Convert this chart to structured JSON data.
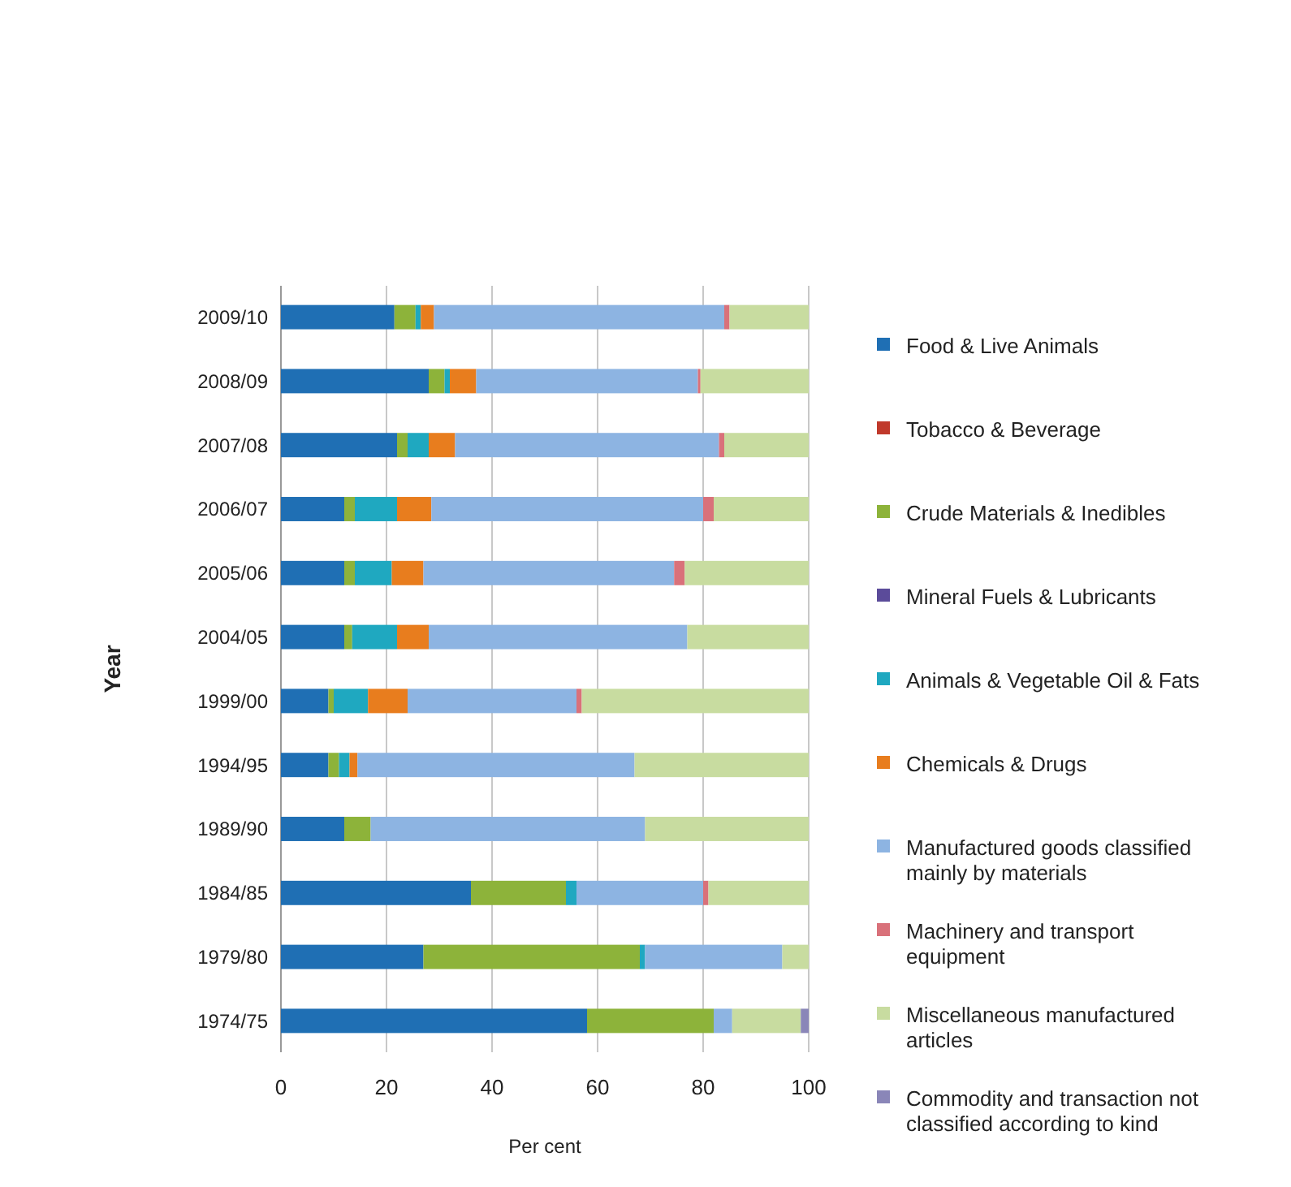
{
  "chart_data": {
    "type": "bar",
    "orientation": "horizontal",
    "stacked": true,
    "xlabel": "Per cent",
    "ylabel": "Year",
    "categories": [
      "2009/10",
      "2008/09",
      "2007/08",
      "2006/07",
      "2005/06",
      "2004/05",
      "1999/00",
      "1994/95",
      "1989/90",
      "1984/85",
      "1979/80",
      "1974/75"
    ],
    "xlim": [
      0,
      100
    ],
    "xticks": [
      0,
      20,
      40,
      60,
      80,
      100
    ],
    "grid": "x",
    "legend": "right",
    "series": [
      {
        "name": "Food & Live Animals",
        "color": "#1f6fb4",
        "values": [
          21.5,
          28,
          22,
          12,
          12,
          12,
          9,
          9,
          12,
          36,
          27,
          58
        ]
      },
      {
        "name": "Tobacco & Beverage",
        "color": "#c0392b",
        "values": [
          0,
          0,
          0,
          0,
          0,
          0,
          0,
          0,
          0,
          0,
          0,
          0
        ]
      },
      {
        "name": "Crude Materials & Inedibles",
        "color": "#8db33a",
        "values": [
          4,
          3,
          2,
          2,
          2,
          1.5,
          1,
          2,
          5,
          18,
          41,
          24
        ]
      },
      {
        "name": "Mineral Fuels & Lubricants",
        "color": "#5b4b9a",
        "values": [
          0,
          0,
          0,
          0,
          0,
          0,
          0,
          0,
          0,
          0,
          0,
          0
        ]
      },
      {
        "name": "Animals & Vegetable Oil & Fats",
        "color": "#1fa8c0",
        "values": [
          1,
          1,
          4,
          8,
          7,
          8.5,
          6.5,
          2,
          0,
          2,
          1,
          0
        ]
      },
      {
        "name": "Chemicals & Drugs",
        "color": "#e87d1e",
        "values": [
          2.5,
          5,
          5,
          6.5,
          6,
          6,
          7.5,
          1.5,
          0,
          0,
          0,
          0
        ]
      },
      {
        "name": "Manufactured goods classified mainly by materials",
        "color": "#8db4e2",
        "values": [
          55,
          42,
          50,
          51.5,
          47.5,
          49,
          32,
          52.5,
          52,
          24,
          26,
          3.5
        ]
      },
      {
        "name": "Machinery and transport equipment",
        "color": "#d9717a",
        "values": [
          1,
          0.5,
          1,
          2,
          2,
          0,
          1,
          0,
          0,
          1,
          0,
          0
        ]
      },
      {
        "name": "Miscellaneous manufactured articles",
        "color": "#c8dca0",
        "values": [
          15,
          20.5,
          16,
          18,
          23.5,
          23,
          43,
          33,
          31,
          19,
          5,
          13
        ]
      },
      {
        "name": "Commodity and transaction not classified according to kind",
        "color": "#8a86b8",
        "values": [
          0,
          0,
          0,
          0,
          0,
          0,
          0,
          0,
          0,
          0,
          0,
          1.5
        ]
      }
    ]
  }
}
